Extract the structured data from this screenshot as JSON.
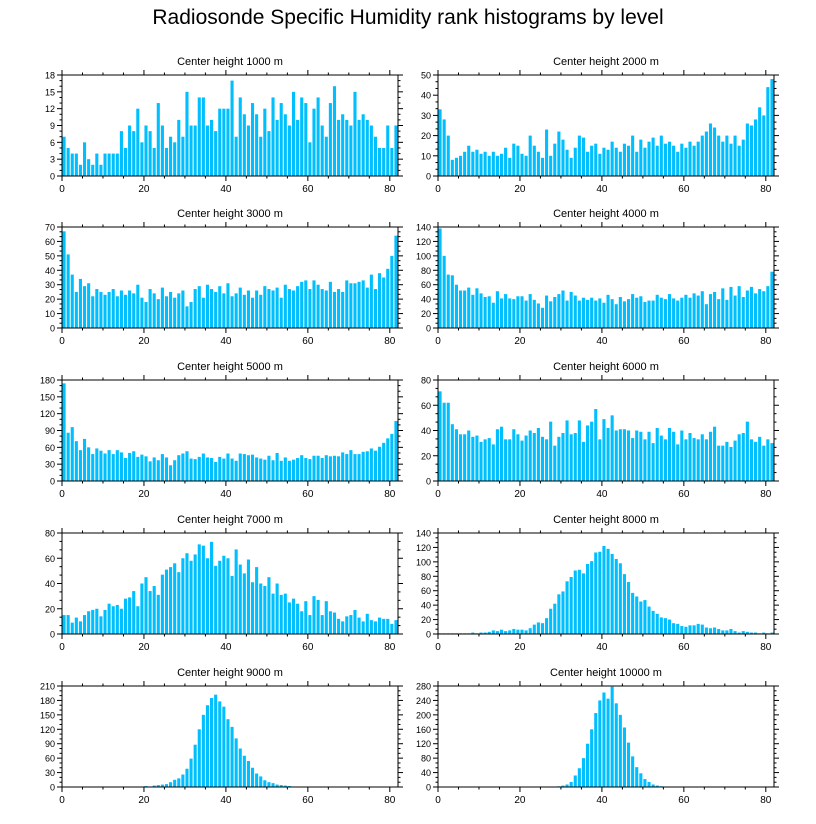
{
  "title": "Radiosonde Specific Humidity rank histograms by level",
  "bar_color": "#00BFFF",
  "chart_data": [
    {
      "type": "bar",
      "title": "Center height 1000 m",
      "xlim": [
        0,
        82
      ],
      "ylim": [
        0,
        18
      ],
      "xticks": [
        0,
        20,
        40,
        60,
        80
      ],
      "yticks": [
        0,
        3,
        6,
        9,
        12,
        15,
        18
      ],
      "values": [
        7,
        5,
        4,
        4,
        2,
        6,
        3,
        2,
        4,
        2,
        4,
        4,
        4,
        4,
        8,
        5,
        9,
        8,
        12,
        6,
        9,
        8,
        5,
        13,
        9,
        5,
        7,
        6,
        10,
        7,
        15,
        9,
        9,
        14,
        14,
        9,
        10,
        8,
        12,
        12,
        12,
        17,
        7,
        14,
        11,
        9,
        13,
        11,
        7,
        12,
        8,
        14,
        10,
        13,
        11,
        9,
        15,
        10,
        14,
        13,
        6,
        12,
        14,
        9,
        7,
        13,
        16,
        10,
        11,
        10,
        9,
        15,
        10,
        11,
        10,
        9,
        7,
        5,
        5,
        9,
        5,
        9
      ]
    },
    {
      "type": "bar",
      "title": "Center height 2000 m",
      "xlim": [
        0,
        82
      ],
      "ylim": [
        0,
        50
      ],
      "xticks": [
        0,
        20,
        40,
        60,
        80
      ],
      "yticks": [
        0,
        10,
        20,
        30,
        40,
        50
      ],
      "values": [
        33,
        28,
        20,
        8,
        9,
        10,
        12,
        15,
        12,
        13,
        11,
        12,
        10,
        12,
        10,
        11,
        14,
        9,
        16,
        15,
        11,
        10,
        20,
        15,
        12,
        9,
        23,
        10,
        16,
        22,
        18,
        13,
        9,
        14,
        20,
        19,
        12,
        15,
        16,
        11,
        14,
        13,
        17,
        14,
        12,
        16,
        15,
        20,
        12,
        18,
        14,
        17,
        19,
        15,
        20,
        16,
        17,
        15,
        12,
        16,
        14,
        17,
        15,
        17,
        20,
        22,
        26,
        24,
        20,
        17,
        20,
        16,
        20,
        15,
        18,
        26,
        25,
        28,
        34,
        30,
        44,
        48
      ]
    },
    {
      "type": "bar",
      "title": "Center height 3000 m",
      "xlim": [
        0,
        82
      ],
      "ylim": [
        0,
        70
      ],
      "xticks": [
        0,
        20,
        40,
        60,
        80
      ],
      "yticks": [
        0,
        10,
        20,
        30,
        40,
        50,
        60,
        70
      ],
      "values": [
        67,
        51,
        37,
        25,
        34,
        29,
        31,
        22,
        27,
        25,
        23,
        25,
        27,
        22,
        26,
        23,
        26,
        24,
        30,
        21,
        18,
        27,
        24,
        20,
        28,
        22,
        25,
        21,
        24,
        26,
        15,
        18,
        27,
        29,
        21,
        30,
        27,
        25,
        29,
        24,
        31,
        22,
        24,
        28,
        23,
        26,
        21,
        26,
        23,
        29,
        27,
        26,
        28,
        21,
        30,
        27,
        26,
        29,
        32,
        33,
        27,
        33,
        30,
        27,
        26,
        32,
        25,
        27,
        25,
        33,
        31,
        31,
        32,
        33,
        28,
        37,
        27,
        38,
        35,
        41,
        50,
        64
      ]
    },
    {
      "type": "bar",
      "title": "Center height 4000 m",
      "xlim": [
        0,
        82
      ],
      "ylim": [
        0,
        140
      ],
      "xticks": [
        0,
        20,
        40,
        60,
        80
      ],
      "yticks": [
        0,
        20,
        40,
        60,
        80,
        100,
        120,
        140
      ],
      "values": [
        138,
        100,
        74,
        73,
        60,
        52,
        52,
        56,
        46,
        55,
        48,
        43,
        44,
        35,
        51,
        41,
        47,
        41,
        40,
        44,
        44,
        38,
        47,
        39,
        34,
        28,
        45,
        37,
        43,
        47,
        52,
        38,
        50,
        45,
        38,
        42,
        39,
        42,
        38,
        41,
        35,
        46,
        40,
        33,
        43,
        37,
        40,
        47,
        42,
        44,
        36,
        38,
        38,
        46,
        42,
        40,
        47,
        41,
        38,
        42,
        46,
        42,
        48,
        45,
        51,
        33,
        47,
        50,
        40,
        55,
        39,
        57,
        45,
        58,
        43,
        52,
        57,
        48,
        54,
        51,
        58,
        78
      ]
    },
    {
      "type": "bar",
      "title": "Center height 5000 m",
      "xlim": [
        0,
        82
      ],
      "ylim": [
        0,
        180
      ],
      "xticks": [
        0,
        20,
        40,
        60,
        80
      ],
      "yticks": [
        0,
        30,
        60,
        90,
        120,
        150,
        180
      ],
      "values": [
        174,
        86,
        96,
        71,
        55,
        75,
        60,
        48,
        58,
        54,
        49,
        55,
        48,
        55,
        51,
        41,
        50,
        53,
        43,
        47,
        44,
        35,
        42,
        37,
        48,
        42,
        28,
        37,
        46,
        49,
        53,
        40,
        39,
        43,
        49,
        42,
        41,
        34,
        43,
        40,
        49,
        40,
        36,
        49,
        48,
        46,
        47,
        42,
        40,
        38,
        45,
        37,
        50,
        36,
        42,
        36,
        38,
        41,
        46,
        41,
        39,
        45,
        45,
        41,
        46,
        44,
        45,
        44,
        51,
        48,
        55,
        48,
        48,
        52,
        53,
        58,
        54,
        61,
        68,
        76,
        84,
        107
      ]
    },
    {
      "type": "bar",
      "title": "Center height 6000 m",
      "xlim": [
        0,
        82
      ],
      "ylim": [
        0,
        80
      ],
      "xticks": [
        0,
        20,
        40,
        60,
        80
      ],
      "yticks": [
        0,
        20,
        40,
        60,
        80
      ],
      "values": [
        71,
        62,
        62,
        45,
        41,
        37,
        37,
        40,
        35,
        36,
        31,
        33,
        34,
        29,
        41,
        43,
        33,
        33,
        41,
        37,
        32,
        36,
        40,
        38,
        42,
        35,
        33,
        47,
        28,
        35,
        38,
        48,
        37,
        38,
        48,
        31,
        44,
        47,
        57,
        33,
        49,
        42,
        52,
        40,
        41,
        41,
        40,
        34,
        40,
        39,
        33,
        39,
        30,
        42,
        36,
        33,
        42,
        39,
        29,
        40,
        33,
        38,
        34,
        33,
        37,
        33,
        39,
        43,
        28,
        28,
        31,
        27,
        32,
        37,
        38,
        47,
        33,
        31,
        35,
        28,
        33,
        30
      ]
    },
    {
      "type": "bar",
      "title": "Center height 7000 m",
      "xlim": [
        0,
        82
      ],
      "ylim": [
        0,
        80
      ],
      "xticks": [
        0,
        20,
        40,
        60,
        80
      ],
      "yticks": [
        0,
        20,
        40,
        60,
        80
      ],
      "values": [
        15,
        15,
        9,
        13,
        10,
        15,
        18,
        19,
        20,
        14,
        19,
        24,
        22,
        23,
        20,
        28,
        29,
        34,
        22,
        40,
        45,
        34,
        38,
        31,
        47,
        51,
        53,
        56,
        49,
        60,
        64,
        58,
        63,
        71,
        70,
        60,
        73,
        54,
        58,
        62,
        60,
        46,
        67,
        55,
        48,
        59,
        41,
        53,
        40,
        38,
        45,
        32,
        40,
        31,
        32,
        25,
        28,
        24,
        18,
        26,
        15,
        30,
        27,
        15,
        26,
        18,
        17,
        12,
        10,
        14,
        15,
        19,
        13,
        10,
        16,
        11,
        10,
        13,
        12,
        12,
        8,
        11
      ]
    },
    {
      "type": "bar",
      "title": "Center height 8000 m",
      "xlim": [
        0,
        82
      ],
      "ylim": [
        0,
        140
      ],
      "xticks": [
        0,
        20,
        40,
        60,
        80
      ],
      "yticks": [
        0,
        20,
        40,
        60,
        80,
        100,
        120,
        140
      ],
      "values": [
        1,
        1,
        1,
        1,
        1,
        1,
        1,
        1,
        2,
        1,
        2,
        2,
        3,
        5,
        4,
        6,
        4,
        5,
        7,
        6,
        6,
        5,
        8,
        13,
        16,
        15,
        22,
        35,
        42,
        55,
        59,
        73,
        79,
        88,
        89,
        84,
        97,
        101,
        113,
        114,
        122,
        118,
        111,
        104,
        98,
        83,
        72,
        57,
        52,
        45,
        47,
        38,
        32,
        28,
        23,
        22,
        20,
        15,
        14,
        11,
        10,
        12,
        12,
        14,
        13,
        9,
        8,
        9,
        7,
        5,
        5,
        7,
        4,
        2,
        4,
        3,
        2,
        2,
        1,
        2,
        1,
        2
      ]
    },
    {
      "type": "bar",
      "title": "Center height 9000 m",
      "xlim": [
        0,
        82
      ],
      "ylim": [
        0,
        210
      ],
      "xticks": [
        0,
        20,
        40,
        60,
        80
      ],
      "yticks": [
        0,
        30,
        60,
        90,
        120,
        150,
        180,
        210
      ],
      "values": [
        0,
        0,
        0,
        0,
        0,
        0,
        0,
        0,
        0,
        0,
        0,
        0,
        0,
        0,
        0,
        0,
        0,
        0,
        0,
        1,
        2,
        1,
        3,
        4,
        5,
        6,
        10,
        15,
        18,
        26,
        38,
        59,
        88,
        120,
        150,
        170,
        185,
        192,
        178,
        167,
        141,
        125,
        101,
        80,
        65,
        54,
        40,
        28,
        22,
        14,
        10,
        8,
        5,
        4,
        3,
        2,
        1,
        1,
        0,
        0,
        0,
        0,
        0,
        0,
        0,
        0,
        0,
        0,
        0,
        0,
        0,
        0,
        0,
        0,
        0,
        0,
        0,
        0,
        0,
        0,
        0,
        0
      ]
    },
    {
      "type": "bar",
      "title": "Center height 10000 m",
      "xlim": [
        0,
        82
      ],
      "ylim": [
        0,
        280
      ],
      "xticks": [
        0,
        20,
        40,
        60,
        80
      ],
      "yticks": [
        0,
        40,
        80,
        120,
        160,
        200,
        240,
        280
      ],
      "values": [
        0,
        0,
        0,
        0,
        0,
        0,
        0,
        0,
        0,
        0,
        0,
        0,
        0,
        0,
        0,
        0,
        0,
        0,
        0,
        0,
        0,
        0,
        0,
        0,
        0,
        0,
        0,
        0,
        1,
        2,
        4,
        7,
        14,
        32,
        52,
        80,
        120,
        160,
        205,
        240,
        262,
        245,
        278,
        232,
        200,
        165,
        123,
        85,
        55,
        38,
        22,
        14,
        7,
        4,
        2,
        1,
        0,
        0,
        0,
        0,
        0,
        0,
        0,
        0,
        0,
        0,
        0,
        0,
        0,
        0,
        0,
        0,
        0,
        0,
        0,
        0,
        0,
        0,
        0,
        0,
        0,
        0
      ]
    }
  ]
}
